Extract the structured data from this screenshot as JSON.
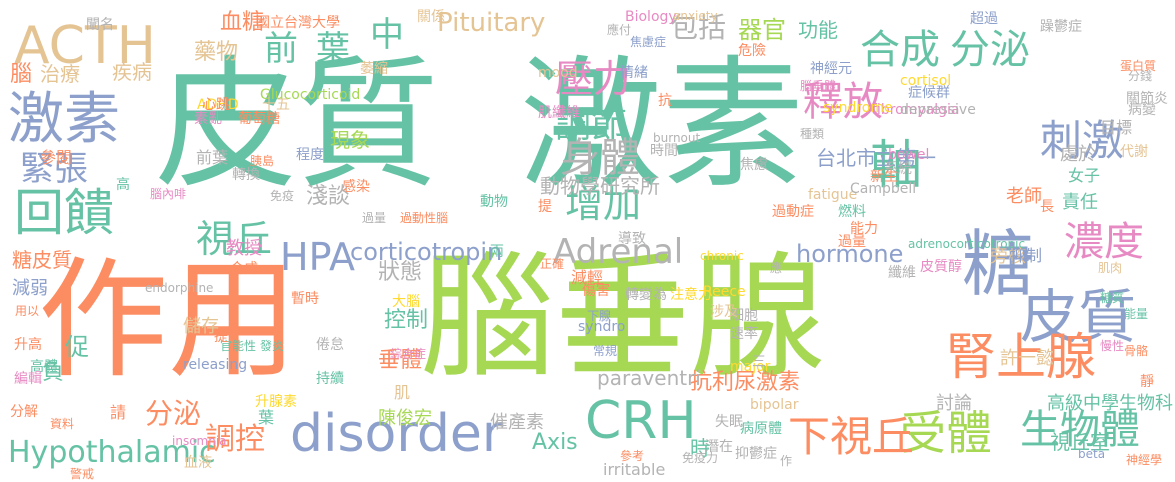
{
  "palette": {
    "green": "#66c2a5",
    "orange": "#fc8d62",
    "blue": "#8da0cb",
    "pink": "#e78ac3",
    "lime": "#a6d854",
    "yellow": "#ffd92f",
    "tan": "#e5c494",
    "grey": "#b3b3b3"
  },
  "words": [
    {
      "t": "皮質",
      "c": "green",
      "v": false
    },
    {
      "t": "激素",
      "c": "green",
      "v": false
    },
    {
      "t": "作用",
      "c": "orange",
      "v": false
    },
    {
      "t": "腦垂腺",
      "c": "lime",
      "v": false
    },
    {
      "t": "ACTH",
      "c": "tan",
      "v": false
    },
    {
      "t": "激素",
      "c": "blue",
      "v": false
    },
    {
      "t": "回饋",
      "c": "green",
      "v": false
    },
    {
      "t": "緊張",
      "c": "blue",
      "v": false
    },
    {
      "t": "糖",
      "c": "blue",
      "v": false
    },
    {
      "t": "皮質",
      "c": "blue",
      "v": false
    },
    {
      "t": "腎上腺",
      "c": "orange",
      "v": false
    },
    {
      "t": "disorder",
      "c": "blue",
      "v": false
    },
    {
      "t": "CRH",
      "c": "green",
      "v": false
    },
    {
      "t": "受體",
      "c": "lime",
      "v": false
    },
    {
      "t": "生物體",
      "c": "green",
      "v": false
    },
    {
      "t": "下視丘",
      "c": "orange",
      "v": false
    },
    {
      "t": "Hypothalamic",
      "c": "green",
      "v": false
    },
    {
      "t": "調控",
      "c": "orange",
      "v": false
    },
    {
      "t": "分泌",
      "c": "green",
      "v": false
    },
    {
      "t": "合成",
      "c": "green",
      "v": false
    },
    {
      "t": "軸",
      "c": "green",
      "v": false
    },
    {
      "t": "刺激",
      "c": "blue",
      "v": false
    },
    {
      "t": "濃度",
      "c": "pink",
      "v": false
    },
    {
      "t": "釋放",
      "c": "pink",
      "v": false
    },
    {
      "t": "壓力",
      "c": "pink",
      "v": false
    },
    {
      "t": "調節",
      "c": "green",
      "v": false
    },
    {
      "t": "身體",
      "c": "grey",
      "v": false
    },
    {
      "t": "增加",
      "c": "green",
      "v": false
    },
    {
      "t": "前",
      "c": "green",
      "v": false
    },
    {
      "t": "葉",
      "c": "green",
      "v": false
    },
    {
      "t": "中",
      "c": "green",
      "v": false
    },
    {
      "t": "HPA",
      "c": "blue",
      "v": false
    },
    {
      "t": "視丘",
      "c": "green",
      "v": false
    },
    {
      "t": "Adrenal",
      "c": "grey",
      "v": false
    },
    {
      "t": "corticotropin",
      "c": "blue",
      "v": false
    },
    {
      "t": "hormone",
      "c": "blue",
      "v": false
    },
    {
      "t": "Pituitary",
      "c": "tan",
      "v": false
    },
    {
      "t": "包括",
      "c": "grey",
      "v": false
    },
    {
      "t": "器官",
      "c": "lime",
      "v": false
    },
    {
      "t": "功能",
      "c": "green",
      "v": false
    },
    {
      "t": "血糖",
      "c": "orange",
      "v": false
    },
    {
      "t": "國立台灣大學",
      "c": "orange",
      "v": false
    },
    {
      "t": "藥物",
      "c": "tan",
      "v": false
    },
    {
      "t": "治療",
      "c": "tan",
      "v": false
    },
    {
      "t": "疾病",
      "c": "tan",
      "v": false
    },
    {
      "t": "腦",
      "c": "orange",
      "v": false
    },
    {
      "t": "參閱",
      "c": "orange",
      "v": false
    },
    {
      "t": "糖皮質",
      "c": "orange",
      "v": false
    },
    {
      "t": "減弱",
      "c": "blue",
      "v": false
    },
    {
      "t": "教授",
      "c": "pink",
      "v": false
    },
    {
      "t": "淺談",
      "c": "grey",
      "v": false
    },
    {
      "t": "現象",
      "c": "lime",
      "v": false
    },
    {
      "t": "狀態",
      "c": "grey",
      "v": false
    },
    {
      "t": "控制",
      "c": "green",
      "v": false
    },
    {
      "t": "垂體",
      "c": "orange",
      "v": false
    },
    {
      "t": "促",
      "c": "green",
      "v": false
    },
    {
      "t": "負",
      "c": "green",
      "v": false
    },
    {
      "t": "分泌",
      "c": "orange",
      "v": false
    },
    {
      "t": "Axis",
      "c": "green",
      "v": false
    },
    {
      "t": "時",
      "c": "green",
      "v": false
    },
    {
      "t": "抗利尿激素",
      "c": "orange",
      "v": false
    },
    {
      "t": "paraventri",
      "c": "grey",
      "v": false
    },
    {
      "t": "陳俊宏",
      "c": "lime",
      "v": false
    },
    {
      "t": "催產素",
      "c": "grey",
      "v": false
    },
    {
      "t": "討論",
      "c": "grey",
      "v": false
    },
    {
      "t": "高級中學生物科",
      "c": "green",
      "v": false
    },
    {
      "t": "視丘室",
      "c": "green",
      "v": false
    },
    {
      "t": "許一懿",
      "c": "tan",
      "v": false
    },
    {
      "t": "旁核",
      "c": "tan",
      "v": false
    },
    {
      "t": "抑制",
      "c": "blue",
      "v": false
    },
    {
      "t": "動物學研究所",
      "c": "grey",
      "v": false
    },
    {
      "t": "台北市立第一",
      "c": "blue",
      "v": false
    },
    {
      "t": "處於",
      "c": "grey",
      "v": false
    },
    {
      "t": "女子",
      "c": "green",
      "v": false
    },
    {
      "t": "責任",
      "c": "green",
      "v": false
    },
    {
      "t": "老師",
      "c": "orange",
      "v": false
    },
    {
      "t": "儲存",
      "c": "tan",
      "v": false
    },
    {
      "t": "releasing",
      "c": "blue",
      "v": false
    },
    {
      "t": "endorphine",
      "c": "grey",
      "v": false
    },
    {
      "t": "Glucocorticoid",
      "c": "lime",
      "v": false
    },
    {
      "t": "ADHD",
      "c": "yellow",
      "v": false
    },
    {
      "t": "mood",
      "c": "tan",
      "v": false
    },
    {
      "t": "cortisol",
      "c": "yellow",
      "v": false
    },
    {
      "t": "fibromyalgia",
      "c": "pink",
      "v": false
    },
    {
      "t": "depressive",
      "c": "grey",
      "v": false
    },
    {
      "t": "syndrome",
      "c": "yellow",
      "v": false
    },
    {
      "t": "bowel",
      "c": "pink",
      "v": false
    },
    {
      "t": "fatigue",
      "c": "tan",
      "v": false
    },
    {
      "t": "Campbell",
      "c": "grey",
      "v": false
    },
    {
      "t": "adrenocorticotropic",
      "c": "green",
      "v": false
    },
    {
      "t": "chronic",
      "c": "yellow",
      "v": false
    },
    {
      "t": "Reece",
      "c": "yellow",
      "v": false
    },
    {
      "t": "syndro",
      "c": "blue",
      "v": false
    },
    {
      "t": "major",
      "c": "yellow",
      "v": false
    },
    {
      "t": "bipolar",
      "c": "tan",
      "v": false
    },
    {
      "t": "irritable",
      "c": "grey",
      "v": false
    },
    {
      "t": "insomnia",
      "c": "pink",
      "v": false
    },
    {
      "t": "burnout",
      "c": "grey",
      "v": false
    },
    {
      "t": "Biology",
      "c": "pink",
      "v": false
    },
    {
      "t": "anxiety",
      "c": "tan",
      "v": false
    },
    {
      "t": "beta",
      "c": "blue",
      "v": false
    },
    {
      "t": "神經學",
      "c": "orange",
      "v": false
    },
    {
      "t": "抑鬱症",
      "c": "grey",
      "v": false
    },
    {
      "t": "病原體",
      "c": "green",
      "v": false
    },
    {
      "t": "焦慮症",
      "c": "blue",
      "v": false
    },
    {
      "t": "肌纖維",
      "c": "pink",
      "v": false
    },
    {
      "t": "胰島",
      "c": "orange",
      "v": false
    },
    {
      "t": "葡萄糖",
      "c": "orange",
      "v": false
    },
    {
      "t": "皮質醇",
      "c": "pink",
      "v": false
    },
    {
      "t": "免疫力",
      "c": "grey",
      "v": false
    },
    {
      "t": "轉變為",
      "c": "grey",
      "v": false
    },
    {
      "t": "注意力",
      "c": "yellow",
      "v": false
    },
    {
      "t": "速率",
      "c": "grey",
      "v": false
    },
    {
      "t": "細胞",
      "c": "grey",
      "v": false
    },
    {
      "t": "情緒",
      "c": "blue",
      "v": false
    },
    {
      "t": "神經元",
      "c": "blue",
      "v": false
    },
    {
      "t": "超過",
      "c": "blue",
      "v": false
    },
    {
      "t": "蛋白質",
      "c": "orange",
      "v": false
    },
    {
      "t": "分解",
      "c": "orange",
      "v": false
    },
    {
      "t": "編輯",
      "c": "pink",
      "v": false
    },
    {
      "t": "升高",
      "c": "orange",
      "v": false
    },
    {
      "t": "闡名",
      "c": "grey",
      "v": false
    },
    {
      "t": "關係",
      "c": "tan",
      "v": false
    },
    {
      "t": "萎縮",
      "c": "tan",
      "v": false
    },
    {
      "t": "危險",
      "c": "orange",
      "v": false
    },
    {
      "t": "前葉",
      "c": "grey",
      "v": false
    },
    {
      "t": "高",
      "c": "green",
      "v": false
    },
    {
      "t": "心跳",
      "c": "orange",
      "v": false
    },
    {
      "t": "抗",
      "c": "orange",
      "v": false
    },
    {
      "t": "十五",
      "c": "tan",
      "v": false
    },
    {
      "t": "素亂",
      "c": "pink",
      "v": false
    },
    {
      "t": "程度",
      "c": "blue",
      "v": false
    },
    {
      "t": "時間",
      "c": "grey",
      "v": false
    },
    {
      "t": "感染",
      "c": "orange",
      "v": false
    },
    {
      "t": "過量",
      "c": "orange",
      "v": false
    },
    {
      "t": "導致",
      "c": "grey",
      "v": false
    },
    {
      "t": "能力",
      "c": "orange",
      "v": false
    },
    {
      "t": "燃料",
      "c": "green",
      "v": false
    },
    {
      "t": "系統",
      "c": "grey",
      "v": false
    },
    {
      "t": "新生",
      "c": "orange",
      "v": false
    },
    {
      "t": "代謝",
      "c": "tan",
      "v": false
    },
    {
      "t": "病變",
      "c": "grey",
      "v": false
    },
    {
      "t": "目標",
      "c": "grey",
      "v": false
    },
    {
      "t": "關節炎",
      "c": "grey",
      "v": false
    },
    {
      "t": "能量",
      "c": "green",
      "v": false
    },
    {
      "t": "糖質",
      "c": "green",
      "v": false
    },
    {
      "t": "慢性",
      "c": "pink",
      "v": false
    },
    {
      "t": "骨骼",
      "c": "orange",
      "v": false
    },
    {
      "t": "肌肉",
      "c": "tan",
      "v": false
    },
    {
      "t": "纖維",
      "c": "grey",
      "v": false
    },
    {
      "t": "過動症",
      "c": "orange",
      "v": false
    },
    {
      "t": "涉及",
      "c": "tan",
      "v": false
    },
    {
      "t": "減輕",
      "c": "orange",
      "v": false
    },
    {
      "t": "傷害",
      "c": "orange",
      "v": false
    },
    {
      "t": "大腦",
      "c": "yellow",
      "v": false
    },
    {
      "t": "暫時",
      "c": "orange",
      "v": false
    },
    {
      "t": "發炎",
      "c": "green",
      "v": false
    },
    {
      "t": "倦怠",
      "c": "grey",
      "v": false
    },
    {
      "t": "持續",
      "c": "green",
      "v": false
    },
    {
      "t": "官能性",
      "c": "green",
      "v": false
    },
    {
      "t": "綜合症",
      "c": "pink",
      "v": false
    },
    {
      "t": "升腺素",
      "c": "yellow",
      "v": false
    },
    {
      "t": "轉換",
      "c": "grey",
      "v": false
    },
    {
      "t": "腦內啡",
      "c": "pink",
      "v": false
    },
    {
      "t": "過動性腦",
      "c": "orange",
      "v": false
    },
    {
      "t": "過量",
      "c": "grey",
      "v": false
    },
    {
      "t": "失眠",
      "c": "grey",
      "v": false
    },
    {
      "t": "潛在",
      "c": "grey",
      "v": false
    },
    {
      "t": "參考",
      "c": "orange",
      "v": false
    },
    {
      "t": "警戒",
      "c": "orange",
      "v": false
    },
    {
      "t": "資料",
      "c": "orange",
      "v": false
    },
    {
      "t": "用以",
      "c": "orange",
      "v": false
    },
    {
      "t": "請",
      "c": "orange",
      "v": false
    },
    {
      "t": "血液",
      "c": "tan",
      "v": false
    },
    {
      "t": "提升",
      "c": "orange",
      "v": false
    },
    {
      "t": "種類",
      "c": "grey",
      "v": false
    },
    {
      "t": "肌",
      "c": "tan",
      "v": false
    },
    {
      "t": "兩",
      "c": "green",
      "v": false
    },
    {
      "t": "正確",
      "c": "orange",
      "v": false
    },
    {
      "t": "應",
      "c": "grey",
      "v": false
    },
    {
      "t": "作",
      "c": "grey",
      "v": false
    },
    {
      "t": "三",
      "c": "grey",
      "v": false
    },
    {
      "t": "葉",
      "c": "green",
      "v": false
    },
    {
      "t": "合成",
      "c": "orange",
      "v": false
    },
    {
      "t": "高體",
      "c": "green",
      "v": false
    },
    {
      "t": "長",
      "c": "orange",
      "v": false
    },
    {
      "t": "應付",
      "c": "grey",
      "v": false
    },
    {
      "t": "免疫",
      "c": "grey",
      "v": false
    },
    {
      "t": "症候群",
      "c": "blue",
      "v": false
    },
    {
      "t": "躁鬱症",
      "c": "grey",
      "v": false
    },
    {
      "t": "分錢",
      "c": "grey",
      "v": false
    },
    {
      "t": "靜",
      "c": "orange",
      "v": false
    },
    {
      "t": "焦慮",
      "c": "grey",
      "v": false
    },
    {
      "t": "動物",
      "c": "green",
      "v": false
    },
    {
      "t": "提",
      "c": "orange",
      "v": false
    },
    {
      "t": "下腺",
      "c": "blue",
      "v": false
    },
    {
      "t": "常規",
      "c": "blue",
      "v": false
    },
    {
      "t": "腦垂體",
      "c": "pink",
      "v": false
    }
  ]
}
